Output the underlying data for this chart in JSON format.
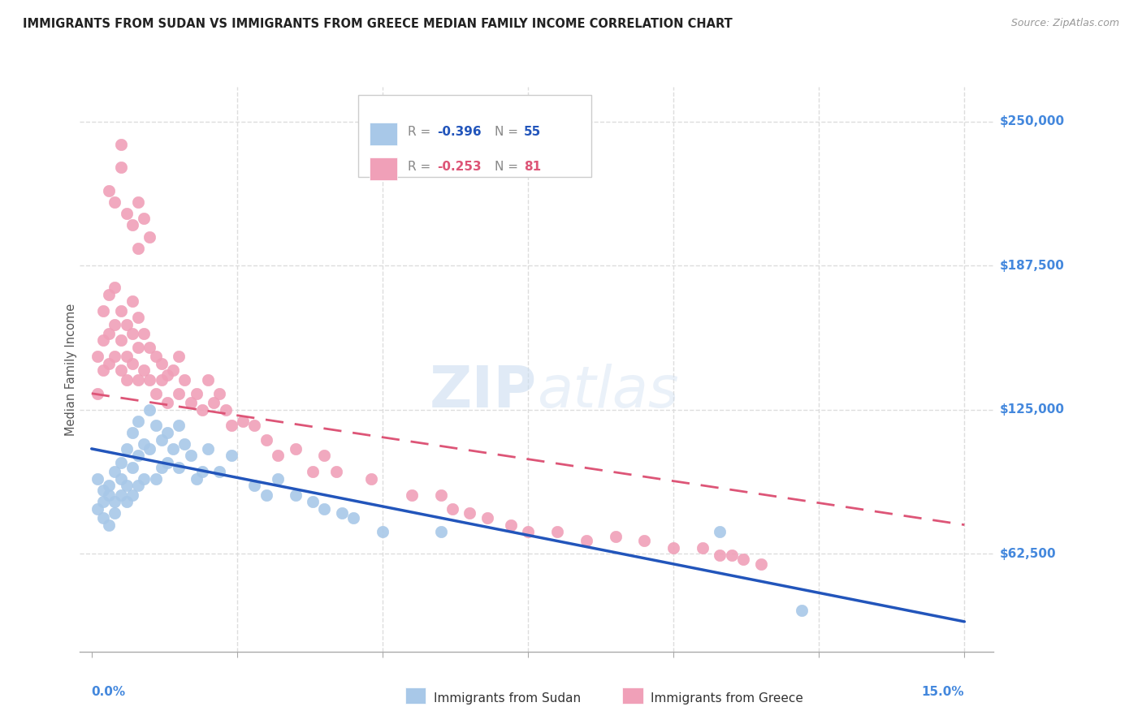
{
  "title": "IMMIGRANTS FROM SUDAN VS IMMIGRANTS FROM GREECE MEDIAN FAMILY INCOME CORRELATION CHART",
  "source": "Source: ZipAtlas.com",
  "ylabel": "Median Family Income",
  "ytick_labels": [
    "$250,000",
    "$187,500",
    "$125,000",
    "$62,500"
  ],
  "ytick_values": [
    250000,
    187500,
    125000,
    62500
  ],
  "ymin": 20000,
  "ymax": 265000,
  "xmin": -0.002,
  "xmax": 0.155,
  "sudan_color": "#a8c8e8",
  "greece_color": "#f0a0b8",
  "sudan_line_color": "#2255bb",
  "greece_line_color": "#dd5577",
  "legend_r_sudan": "-0.396",
  "legend_n_sudan": "55",
  "legend_r_greece": "-0.253",
  "legend_n_greece": "81",
  "watermark_zip": "ZIP",
  "watermark_atlas": "atlas",
  "sudan_points_x": [
    0.001,
    0.001,
    0.002,
    0.002,
    0.002,
    0.003,
    0.003,
    0.003,
    0.004,
    0.004,
    0.004,
    0.005,
    0.005,
    0.005,
    0.006,
    0.006,
    0.006,
    0.007,
    0.007,
    0.007,
    0.008,
    0.008,
    0.008,
    0.009,
    0.009,
    0.01,
    0.01,
    0.011,
    0.011,
    0.012,
    0.012,
    0.013,
    0.013,
    0.014,
    0.015,
    0.015,
    0.016,
    0.017,
    0.018,
    0.019,
    0.02,
    0.022,
    0.024,
    0.028,
    0.03,
    0.032,
    0.035,
    0.038,
    0.04,
    0.043,
    0.045,
    0.05,
    0.06,
    0.108,
    0.122
  ],
  "sudan_points_y": [
    95000,
    82000,
    90000,
    78000,
    85000,
    92000,
    88000,
    75000,
    98000,
    85000,
    80000,
    102000,
    95000,
    88000,
    108000,
    92000,
    85000,
    115000,
    100000,
    88000,
    120000,
    105000,
    92000,
    110000,
    95000,
    125000,
    108000,
    118000,
    95000,
    112000,
    100000,
    115000,
    102000,
    108000,
    118000,
    100000,
    110000,
    105000,
    95000,
    98000,
    108000,
    98000,
    105000,
    92000,
    88000,
    95000,
    88000,
    85000,
    82000,
    80000,
    78000,
    72000,
    72000,
    72000,
    38000
  ],
  "greece_points_x": [
    0.001,
    0.001,
    0.002,
    0.002,
    0.002,
    0.003,
    0.003,
    0.003,
    0.004,
    0.004,
    0.004,
    0.005,
    0.005,
    0.005,
    0.006,
    0.006,
    0.006,
    0.007,
    0.007,
    0.007,
    0.008,
    0.008,
    0.008,
    0.009,
    0.009,
    0.01,
    0.01,
    0.011,
    0.011,
    0.012,
    0.012,
    0.013,
    0.013,
    0.014,
    0.015,
    0.015,
    0.016,
    0.017,
    0.018,
    0.019,
    0.02,
    0.021,
    0.022,
    0.023,
    0.024,
    0.026,
    0.028,
    0.03,
    0.032,
    0.035,
    0.038,
    0.04,
    0.042,
    0.048,
    0.055,
    0.06,
    0.062,
    0.065,
    0.068,
    0.072,
    0.075,
    0.08,
    0.085,
    0.09,
    0.095,
    0.1,
    0.105,
    0.108,
    0.112,
    0.115,
    0.003,
    0.004,
    0.005,
    0.005,
    0.006,
    0.007,
    0.008,
    0.008,
    0.009,
    0.01,
    0.11
  ],
  "greece_points_y": [
    148000,
    132000,
    155000,
    168000,
    142000,
    158000,
    145000,
    175000,
    162000,
    148000,
    178000,
    155000,
    142000,
    168000,
    162000,
    148000,
    138000,
    172000,
    158000,
    145000,
    165000,
    152000,
    138000,
    158000,
    142000,
    152000,
    138000,
    148000,
    132000,
    145000,
    138000,
    140000,
    128000,
    142000,
    148000,
    132000,
    138000,
    128000,
    132000,
    125000,
    138000,
    128000,
    132000,
    125000,
    118000,
    120000,
    118000,
    112000,
    105000,
    108000,
    98000,
    105000,
    98000,
    95000,
    88000,
    88000,
    82000,
    80000,
    78000,
    75000,
    72000,
    72000,
    68000,
    70000,
    68000,
    65000,
    65000,
    62000,
    60000,
    58000,
    220000,
    215000,
    230000,
    240000,
    210000,
    205000,
    215000,
    195000,
    208000,
    200000,
    62000
  ],
  "sudan_trend_x": [
    0.0,
    0.15
  ],
  "sudan_trend_y": [
    108000,
    33000
  ],
  "greece_trend_x": [
    0.0,
    0.15
  ],
  "greece_trend_y": [
    132000,
    75000
  ],
  "background_color": "#ffffff",
  "grid_color": "#dddddd",
  "title_color": "#222222",
  "ytick_color": "#4488dd",
  "xtick_color": "#4488dd"
}
